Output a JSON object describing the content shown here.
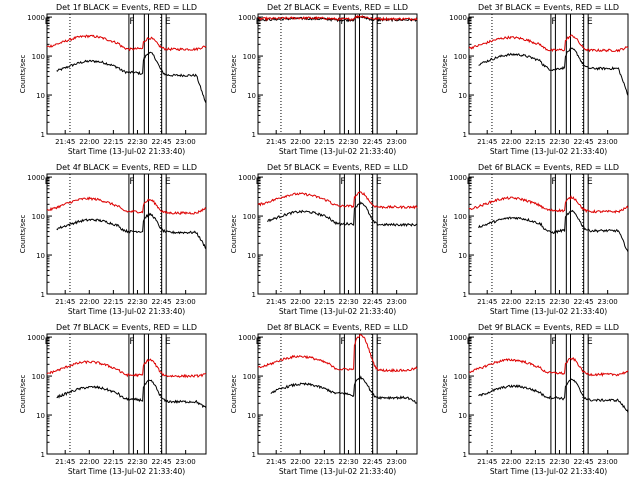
{
  "colors": {
    "events": "#000000",
    "lld": "#dd0000",
    "axis": "#000000"
  },
  "shared": {
    "xlabel": "Start Time (13-Jul-02 21:33:40)",
    "ylabel": "Counts/sec",
    "x_tick_labels": [
      "21:45",
      "22:00",
      "22:15",
      "22:30",
      "22:45",
      "23:00"
    ],
    "x_tick_minutes": [
      11.33,
      26.33,
      41.33,
      56.33,
      71.33,
      86.33
    ],
    "xlim_minutes": [
      0,
      99
    ],
    "y_tick_labels": [
      "1",
      "10",
      "100",
      "1000"
    ],
    "y_tick_values": [
      1,
      10,
      100,
      1000
    ],
    "ylim": [
      1,
      1200
    ],
    "yscale": "log",
    "dotted_lines_minutes": [
      14.3,
      70.9
    ],
    "event_box_edges_minutes": [
      [
        51.0,
        53.8
      ],
      [
        60.6,
        63.2
      ],
      [
        71.4,
        74.2
      ]
    ],
    "event_labels": [
      "E",
      "F",
      "E"
    ],
    "event_label_minutes": [
      -1.5,
      51.3,
      73.5
    ]
  },
  "chart_data": [
    {
      "type": "line",
      "title": "Det 1f BLACK = Events, RED = LLD",
      "series": [
        {
          "name": "Events",
          "t_start": 6,
          "t_end": 99,
          "base": 32,
          "peak": 74,
          "hump_center": 28,
          "hump_width": 18,
          "dip": 38,
          "flare_peak": 120,
          "flare_at": 64,
          "end_drop": 6
        },
        {
          "name": "LLD",
          "t_start": 0,
          "t_end": 99,
          "base": 150,
          "peak": 325,
          "hump_center": 26,
          "hump_width": 18,
          "dip": 150,
          "flare_peak": 290,
          "flare_at": 64,
          "end_drop": 180
        }
      ]
    },
    {
      "type": "line",
      "title": "Det 2f BLACK = Events, RED = LLD",
      "series": [
        {
          "name": "Events",
          "t_start": 0,
          "t_end": 99,
          "base": 850,
          "peak": 920,
          "hump_center": 28,
          "hump_width": 18,
          "dip": 840,
          "flare_peak": 1000,
          "flare_at": 64,
          "end_drop": 850
        },
        {
          "name": "LLD",
          "t_start": 0,
          "t_end": 99,
          "base": 900,
          "peak": 950,
          "hump_center": 28,
          "hump_width": 18,
          "dip": 880,
          "flare_peak": 1050,
          "flare_at": 64,
          "end_drop": 900
        }
      ]
    },
    {
      "type": "line",
      "title": "Det 3f BLACK = Events, RED = LLD",
      "series": [
        {
          "name": "Events",
          "t_start": 6,
          "t_end": 99,
          "base": 48,
          "peak": 110,
          "hump_center": 28,
          "hump_width": 18,
          "dip": 45,
          "flare_peak": 150,
          "flare_at": 64,
          "end_drop": 10
        },
        {
          "name": "LLD",
          "t_start": 0,
          "t_end": 99,
          "base": 140,
          "peak": 300,
          "hump_center": 26,
          "hump_width": 18,
          "dip": 140,
          "flare_peak": 330,
          "flare_at": 64,
          "end_drop": 170
        }
      ]
    },
    {
      "type": "line",
      "title": "Det 4f BLACK = Events, RED = LLD",
      "series": [
        {
          "name": "Events",
          "t_start": 6,
          "t_end": 99,
          "base": 38,
          "peak": 80,
          "hump_center": 28,
          "hump_width": 18,
          "dip": 40,
          "flare_peak": 110,
          "flare_at": 64,
          "end_drop": 15
        },
        {
          "name": "LLD",
          "t_start": 0,
          "t_end": 99,
          "base": 120,
          "peak": 280,
          "hump_center": 26,
          "hump_width": 18,
          "dip": 130,
          "flare_peak": 260,
          "flare_at": 64,
          "end_drop": 160
        }
      ]
    },
    {
      "type": "line",
      "title": "Det 5f BLACK = Events, RED = LLD",
      "series": [
        {
          "name": "Events",
          "t_start": 6,
          "t_end": 99,
          "base": 60,
          "peak": 130,
          "hump_center": 28,
          "hump_width": 18,
          "dip": 62,
          "flare_peak": 220,
          "flare_at": 64,
          "end_drop": 60
        },
        {
          "name": "LLD",
          "t_start": 0,
          "t_end": 99,
          "base": 170,
          "peak": 370,
          "hump_center": 26,
          "hump_width": 18,
          "dip": 180,
          "flare_peak": 400,
          "flare_at": 64,
          "end_drop": 170
        }
      ]
    },
    {
      "type": "line",
      "title": "Det 6f BLACK = Events, RED = LLD",
      "series": [
        {
          "name": "Events",
          "t_start": 6,
          "t_end": 99,
          "base": 42,
          "peak": 90,
          "hump_center": 28,
          "hump_width": 18,
          "dip": 38,
          "flare_peak": 130,
          "flare_at": 64,
          "end_drop": 12
        },
        {
          "name": "LLD",
          "t_start": 0,
          "t_end": 99,
          "base": 130,
          "peak": 290,
          "hump_center": 26,
          "hump_width": 18,
          "dip": 140,
          "flare_peak": 300,
          "flare_at": 64,
          "end_drop": 170
        }
      ]
    },
    {
      "type": "line",
      "title": "Det 7f BLACK = Events, RED = LLD",
      "series": [
        {
          "name": "Events",
          "t_start": 6,
          "t_end": 99,
          "base": 22,
          "peak": 52,
          "hump_center": 28,
          "hump_width": 18,
          "dip": 25,
          "flare_peak": 75,
          "flare_at": 64,
          "end_drop": 15
        },
        {
          "name": "LLD",
          "t_start": 0,
          "t_end": 99,
          "base": 100,
          "peak": 230,
          "hump_center": 26,
          "hump_width": 18,
          "dip": 105,
          "flare_peak": 260,
          "flare_at": 64,
          "end_drop": 110
        }
      ]
    },
    {
      "type": "line",
      "title": "Det 8f BLACK = Events, RED = LLD",
      "series": [
        {
          "name": "Events",
          "t_start": 8,
          "t_end": 99,
          "base": 28,
          "peak": 62,
          "hump_center": 28,
          "hump_width": 18,
          "dip": 36,
          "flare_peak": 90,
          "flare_at": 64,
          "end_drop": 20
        },
        {
          "name": "LLD",
          "t_start": 0,
          "t_end": 99,
          "base": 140,
          "peak": 320,
          "hump_center": 26,
          "hump_width": 18,
          "dip": 150,
          "flare_peak": 1100,
          "flare_at": 64,
          "end_drop": 160
        }
      ]
    },
    {
      "type": "line",
      "title": "Det 9f BLACK = Events, RED = LLD",
      "series": [
        {
          "name": "Events",
          "t_start": 6,
          "t_end": 99,
          "base": 24,
          "peak": 55,
          "hump_center": 28,
          "hump_width": 18,
          "dip": 28,
          "flare_peak": 80,
          "flare_at": 64,
          "end_drop": 12
        },
        {
          "name": "LLD",
          "t_start": 0,
          "t_end": 99,
          "base": 110,
          "peak": 260,
          "hump_center": 26,
          "hump_width": 18,
          "dip": 120,
          "flare_peak": 280,
          "flare_at": 64,
          "end_drop": 130
        }
      ]
    }
  ]
}
